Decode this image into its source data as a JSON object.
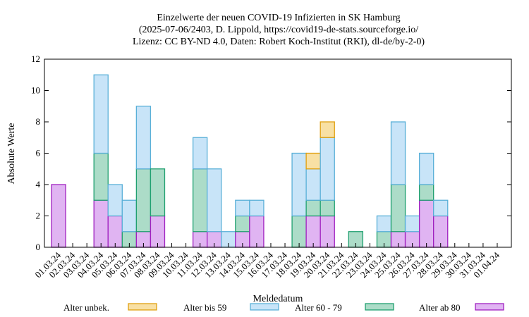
{
  "chart_data": {
    "type": "bar",
    "stacked": true,
    "title": [
      "Einzelwerte der neuen COVID-19 Infizierten in SK Hamburg",
      "(2025-07-06/2403, D. Lippold, https://covid19-de-stats.sourceforge.io/",
      "Lizenz: CC BY-ND 4.0, Daten: Robert Koch-Institut (RKI), dl-de/by-2-0)"
    ],
    "x_label": "Meldedatum",
    "y_label": "Absolute Werte",
    "categories": [
      "01.03.24",
      "02.03.24",
      "03.03.24",
      "04.03.24",
      "05.03.24",
      "06.03.24",
      "07.03.24",
      "08.03.24",
      "09.03.24",
      "10.03.24",
      "11.03.24",
      "12.03.24",
      "13.03.24",
      "14.03.24",
      "15.03.24",
      "16.03.24",
      "17.03.24",
      "18.03.24",
      "19.03.24",
      "20.03.24",
      "21.03.24",
      "22.03.24",
      "23.03.24",
      "24.03.24",
      "25.03.24",
      "26.03.24",
      "27.03.24",
      "28.03.24",
      "29.03.24",
      "30.03.24",
      "31.03.24",
      "01.04.24"
    ],
    "series": [
      {
        "name": "Alter ab 80",
        "color": "#e0b4f2",
        "stroke": "#a020c0",
        "values": [
          4,
          0,
          0,
          3,
          2,
          0,
          1,
          2,
          0,
          0,
          1,
          1,
          0,
          1,
          2,
          0,
          0,
          0,
          2,
          2,
          0,
          0,
          0,
          0,
          1,
          1,
          3,
          2,
          0,
          0,
          0,
          0
        ]
      },
      {
        "name": "Alter 60 - 79",
        "color": "#acdcc8",
        "stroke": "#20a070",
        "values": [
          0,
          0,
          0,
          3,
          0,
          1,
          4,
          3,
          0,
          0,
          4,
          0,
          0,
          1,
          0,
          0,
          0,
          2,
          1,
          1,
          0,
          1,
          0,
          1,
          3,
          0,
          1,
          0,
          0,
          0,
          0,
          0
        ]
      },
      {
        "name": "Alter bis 59",
        "color": "#c8e4f8",
        "stroke": "#5ab0d8",
        "values": [
          0,
          0,
          0,
          5,
          2,
          2,
          4,
          0,
          0,
          0,
          2,
          4,
          1,
          1,
          1,
          0,
          0,
          4,
          2,
          4,
          0,
          0,
          0,
          1,
          4,
          1,
          2,
          1,
          0,
          0,
          0,
          0
        ]
      },
      {
        "name": "Alter unbek.",
        "color": "#f8e0a4",
        "stroke": "#e0a010",
        "values": [
          0,
          0,
          0,
          0,
          0,
          0,
          0,
          0,
          0,
          0,
          0,
          0,
          0,
          0,
          0,
          0,
          0,
          0,
          1,
          1,
          0,
          0,
          0,
          0,
          0,
          0,
          0,
          0,
          0,
          0,
          0,
          0
        ]
      }
    ],
    "legend_order": [
      3,
      2,
      1,
      0
    ],
    "ylim": [
      0,
      12
    ],
    "yticks": [
      0,
      2,
      4,
      6,
      8,
      10,
      12
    ]
  }
}
